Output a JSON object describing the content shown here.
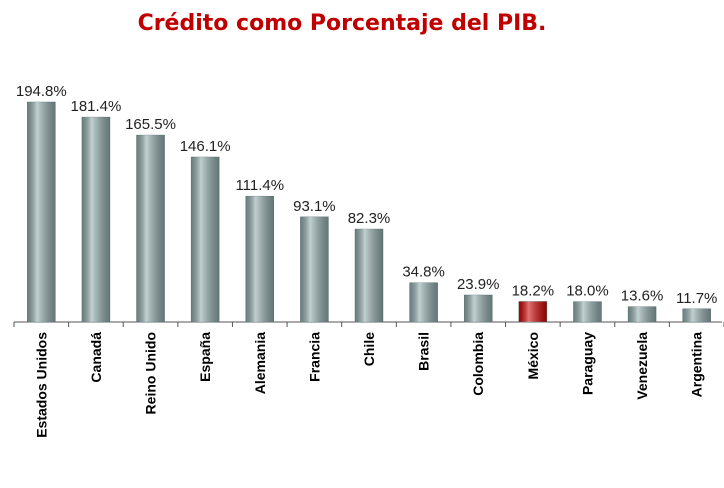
{
  "chart_data": {
    "type": "bar",
    "title": "Crédito como Porcentaje del PIB.",
    "categories": [
      "Estados Unidos",
      "Canadá",
      "Reino Unido",
      "España",
      "Alemania",
      "Francia",
      "Chile",
      "Brasil",
      "Colombia",
      "México",
      "Paraguay",
      "Venezuela",
      "Argentina"
    ],
    "values": [
      194.8,
      181.4,
      165.5,
      146.1,
      111.4,
      93.1,
      82.3,
      34.8,
      23.9,
      18.2,
      18.0,
      13.6,
      11.7
    ],
    "value_labels": [
      "194.8%",
      "181.4%",
      "165.5%",
      "146.1%",
      "111.4%",
      "93.1%",
      "82.3%",
      "34.8%",
      "23.9%",
      "18.2%",
      "18.0%",
      "13.6%",
      "11.7%"
    ],
    "colors": [
      "#8fa9a9",
      "#8fa9a9",
      "#8fa9a9",
      "#8fa9a9",
      "#8fa9a9",
      "#8fa9a9",
      "#8fa9a9",
      "#8fa9a9",
      "#8fa9a9",
      "#cc0000",
      "#8fa9a9",
      "#8fa9a9",
      "#8fa9a9"
    ]
  }
}
